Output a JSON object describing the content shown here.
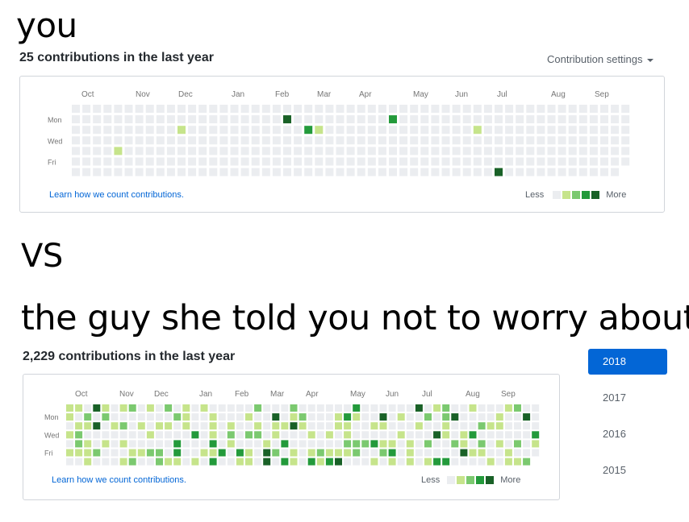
{
  "meme": {
    "top": "you",
    "middle": "VS",
    "bottom": "the guy she told you not to worry about"
  },
  "colors": {
    "levels": [
      "#ebedf0",
      "#c6e48b",
      "#7bc96f",
      "#239a3b",
      "#196127"
    ]
  },
  "you": {
    "heading": "25 contributions in the last year",
    "settings_label": "Contribution settings",
    "months": [
      "Oct",
      "Nov",
      "Dec",
      "Jan",
      "Feb",
      "Mar",
      "Apr",
      "May",
      "Jun",
      "Jul",
      "Aug",
      "Sep"
    ],
    "days": [
      "Mon",
      "Wed",
      "Fri"
    ],
    "learn_link": "Learn how we count contributions.",
    "legend_less": "Less",
    "legend_more": "More"
  },
  "guy": {
    "heading": "2,229 contributions in the last year",
    "months": [
      "Oct",
      "Nov",
      "Dec",
      "Jan",
      "Feb",
      "Mar",
      "Apr",
      "May",
      "Jun",
      "Jul",
      "Aug",
      "Sep"
    ],
    "days": [
      "Mon",
      "Wed",
      "Fri"
    ],
    "learn_link": "Learn how we count contributions.",
    "legend_less": "Less",
    "legend_more": "More",
    "years": [
      "2018",
      "2017",
      "2016",
      "2015"
    ],
    "selected_year": "2018"
  }
}
